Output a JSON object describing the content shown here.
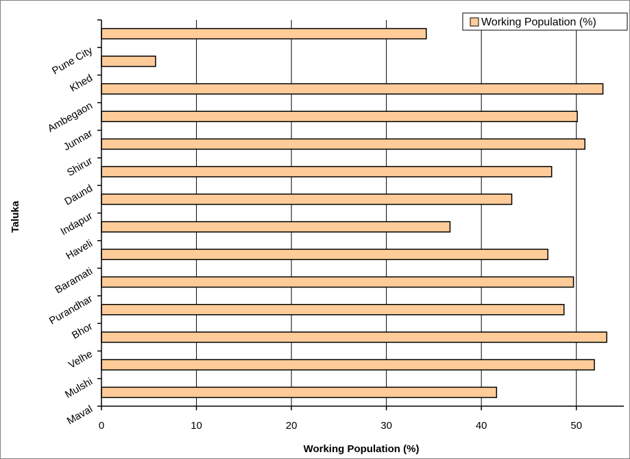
{
  "chart_data": {
    "type": "bar",
    "orientation": "horizontal",
    "xlabel": "Working Population (%)",
    "ylabel": "Taluka",
    "xlim": [
      0,
      55
    ],
    "xticks": [
      0,
      10,
      20,
      30,
      40,
      50
    ],
    "grid": "vertical",
    "legend_position": "top-right",
    "categories_top_to_bottom": [
      "Pune City",
      "Khed",
      "Ambegaon",
      "Junnar",
      "Shirur",
      "Daund",
      "Indapur",
      "Haveli",
      "Baramati",
      "Purandhar",
      "Bhor",
      "Velhe",
      "Mulshi",
      "Maval"
    ],
    "series": [
      {
        "name": "Working Population (%)",
        "values_top_to_bottom": [
          34.2,
          5.7,
          52.8,
          50.1,
          50.9,
          47.4,
          43.2,
          36.7,
          47.0,
          49.7,
          48.7,
          53.2,
          51.9,
          41.6
        ]
      }
    ],
    "colors": {
      "bar_fill": "#FFCC99",
      "bar_stroke": "#000000",
      "grid": "#000000",
      "frame": "#808080"
    }
  }
}
